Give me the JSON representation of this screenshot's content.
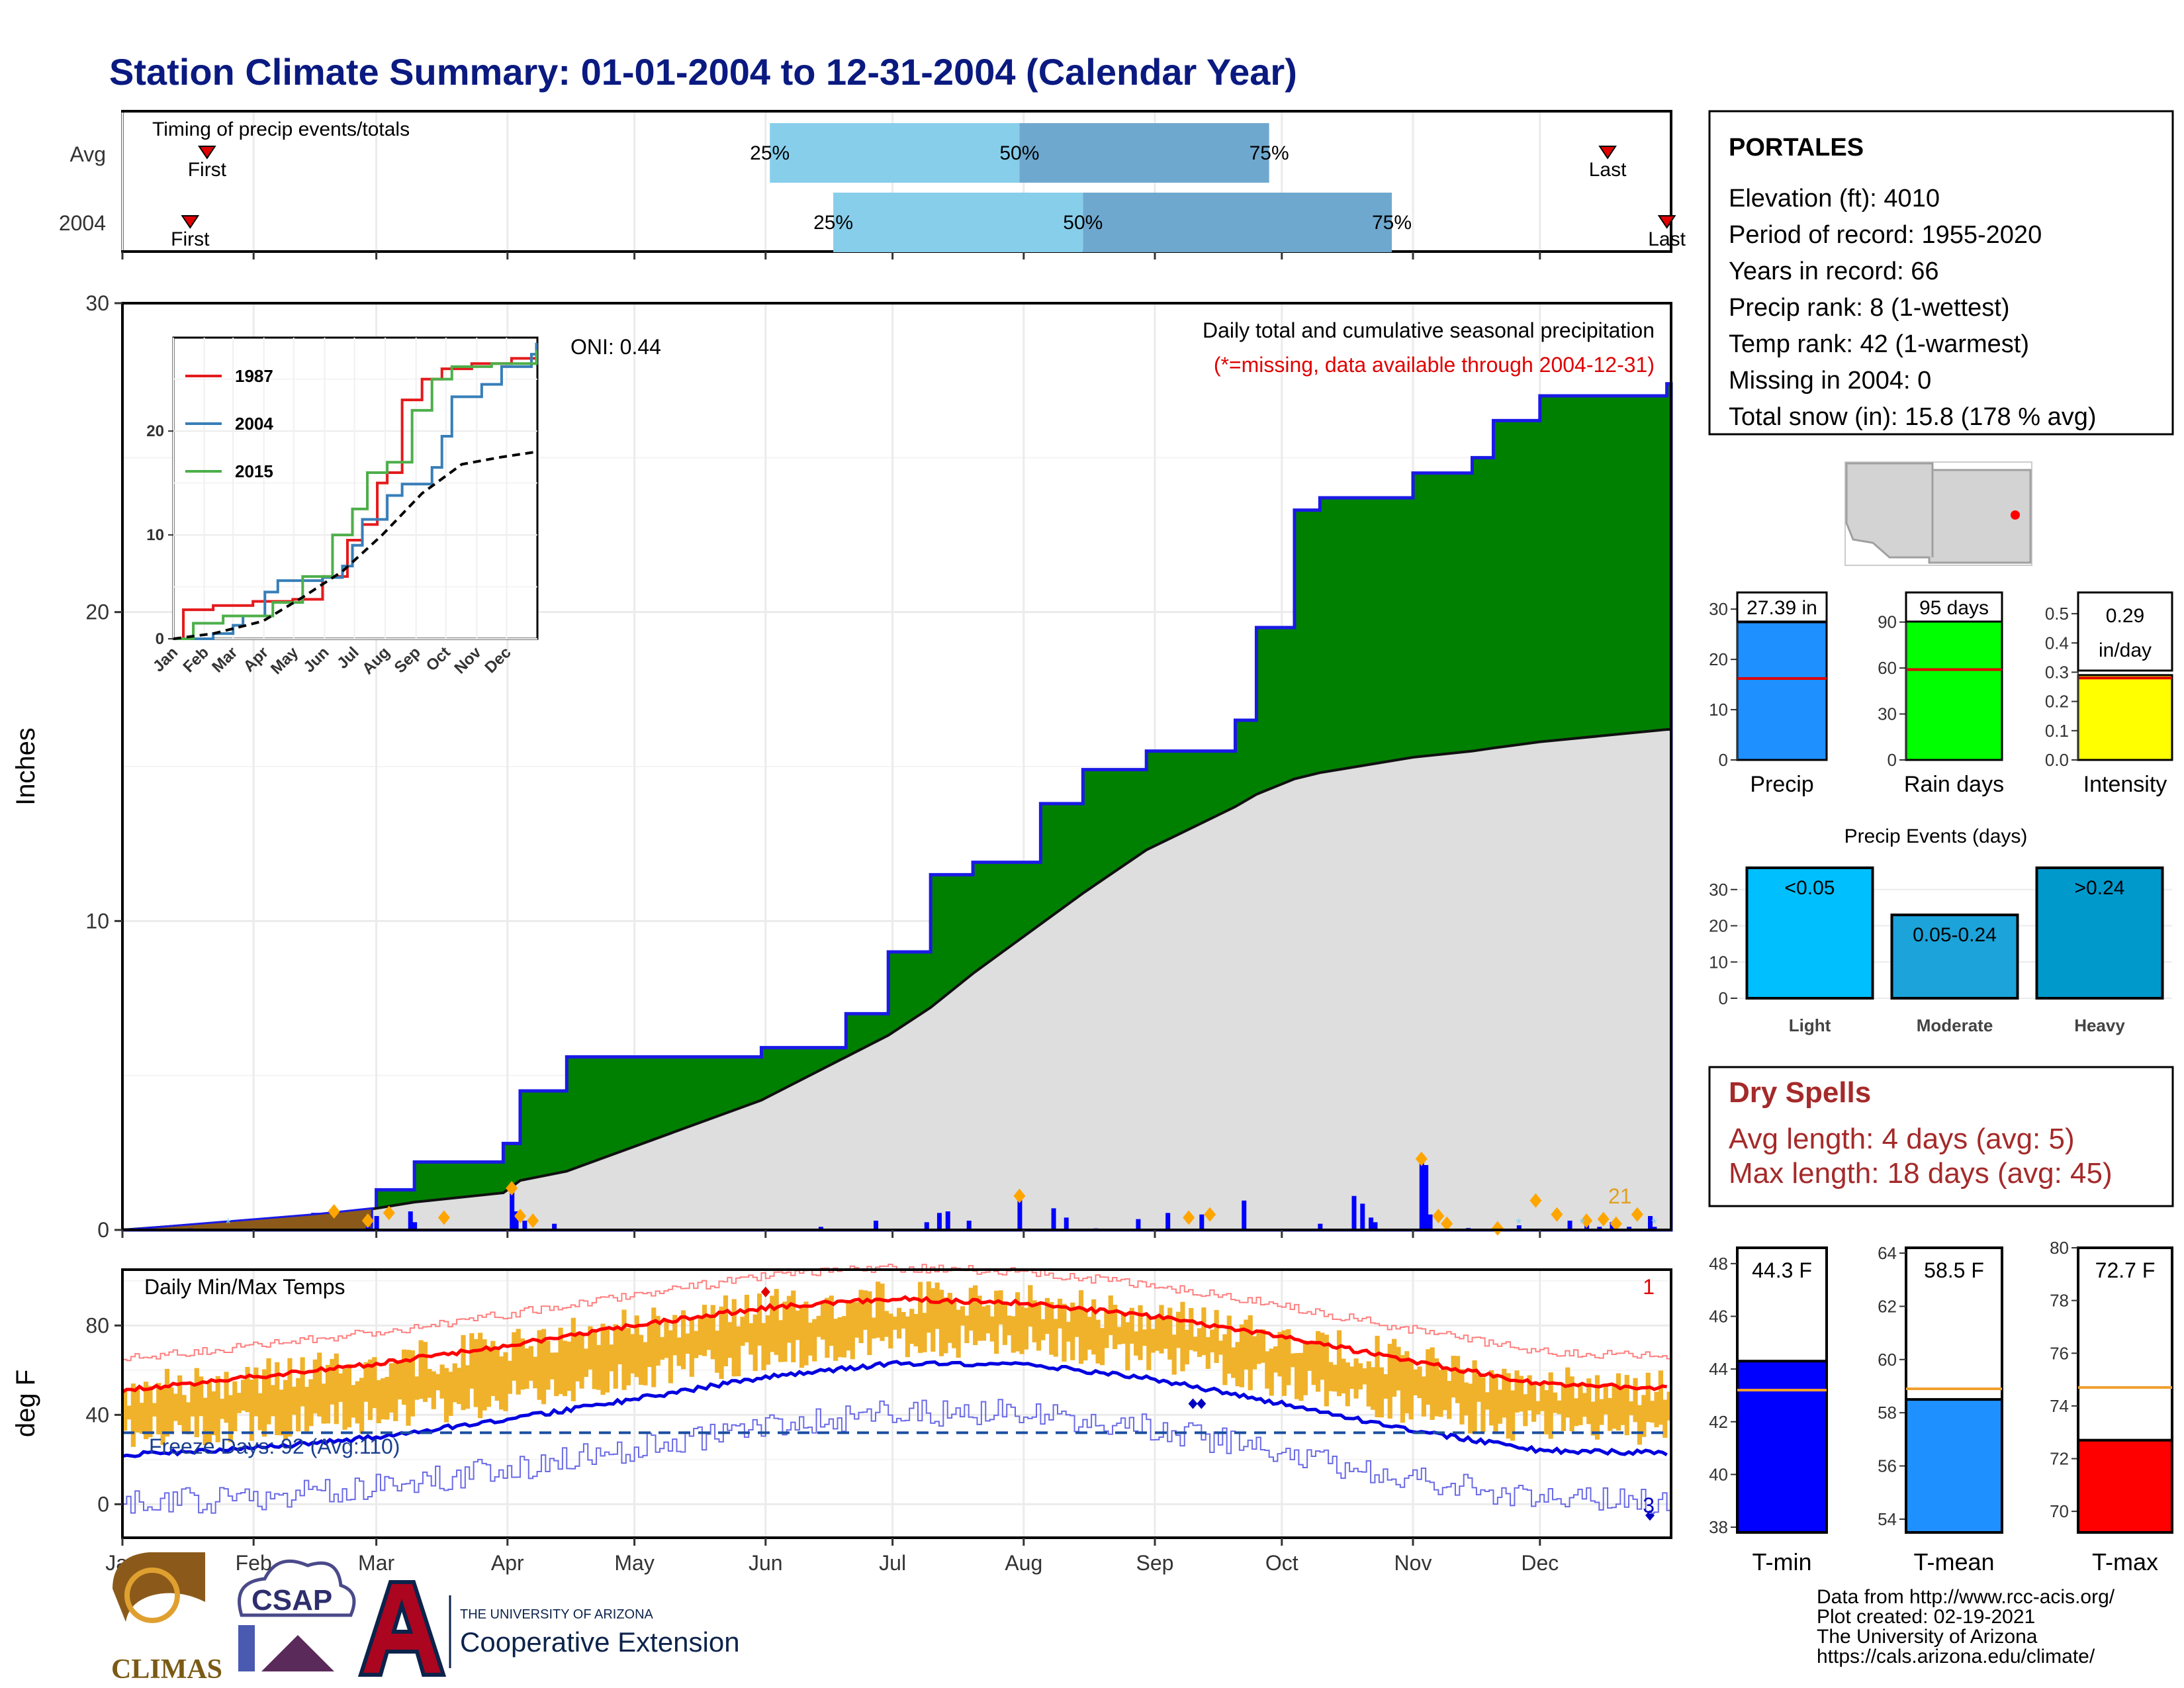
{
  "title": "Station Climate Summary: 01-01-2004 to 12-31-2004 (Calendar Year)",
  "timing": {
    "label": "Timing of precip events/totals",
    "rows": [
      {
        "name": "Avg",
        "first_doy": 20,
        "last_doy": 351,
        "q25_doy": 153,
        "q50_doy": 212,
        "q75_doy": 271
      },
      {
        "name": "2004",
        "first_doy": 16,
        "last_doy": 365,
        "q25_doy": 168,
        "q50_doy": 227,
        "q75_doy": 300
      }
    ],
    "first_label": "First",
    "last_label": "Last",
    "q_labels": [
      "25%",
      "50%",
      "75%"
    ]
  },
  "precip_panel": {
    "ylabel": "Inches",
    "yticks": [
      "0",
      "10",
      "20",
      "30"
    ],
    "ylim": [
      0,
      30
    ],
    "oni": "ONI: 0.44",
    "caption": "Daily total and cumulative seasonal precipitation",
    "missing_note": "(*=missing, data available through 2004-12-31)",
    "count_label": "21"
  },
  "inset": {
    "yticks": [
      "0",
      "10",
      "20"
    ],
    "months": [
      "Jan",
      "Feb",
      "Mar",
      "Apr",
      "May",
      "Jun",
      "Jul",
      "Aug",
      "Sep",
      "Oct",
      "Nov",
      "Dec"
    ],
    "legend": [
      {
        "name": "1987",
        "color": "#e41a1c"
      },
      {
        "name": "2004",
        "color": "#377eb8"
      },
      {
        "name": "2015",
        "color": "#4daf4a"
      }
    ]
  },
  "temp_panel": {
    "ylabel": "deg F",
    "yticks": [
      "0",
      "40",
      "80"
    ],
    "label": "Daily Min/Max Temps",
    "freeze": "Freeze Days: 92 (Avg:110)",
    "record_high_count": "1",
    "record_low_count": "3"
  },
  "months": [
    "Jan",
    "Feb",
    "Mar",
    "Apr",
    "May",
    "Jun",
    "Jul",
    "Aug",
    "Sep",
    "Oct",
    "Nov",
    "Dec"
  ],
  "station": {
    "name": "PORTALES",
    "lines": [
      "Elevation (ft): 4010",
      "Period of record: 1955-2020",
      "Years in record: 66",
      "Precip rank: 8 (1-wettest)",
      "Temp rank: 42 (1-warmest)",
      "Missing in 2004: 0",
      "Total snow (in): 15.8 (178 % avg)"
    ]
  },
  "summary_bars": [
    {
      "name": "Precip",
      "value_label": "27.39 in",
      "value": 27.39,
      "avg": 16.2,
      "max": 32,
      "yticks": [
        "0",
        "10",
        "20",
        "30"
      ],
      "tickvals": [
        0,
        10,
        20,
        30
      ],
      "color": "#1e90ff"
    },
    {
      "name": "Rain days",
      "value_label": "95 days",
      "value": 95,
      "avg": 59,
      "max": 105,
      "yticks": [
        "0",
        "30",
        "60",
        "90"
      ],
      "tickvals": [
        0,
        30,
        60,
        90
      ],
      "color": "#00ff00"
    },
    {
      "name": "Intensity",
      "value_label_1": "0.29",
      "value_label_2": "in/day",
      "value": 0.29,
      "avg": 0.28,
      "max": 0.55,
      "yticks": [
        "0.0",
        "0.1",
        "0.2",
        "0.3",
        "0.4",
        "0.5"
      ],
      "tickvals": [
        0,
        0.1,
        0.2,
        0.3,
        0.4,
        0.5
      ],
      "color": "#ffff00"
    }
  ],
  "precip_events": {
    "title": "Precip Events (days)",
    "yticks": [
      "0",
      "10",
      "20",
      "30"
    ],
    "bars": [
      {
        "category": "Light",
        "label": "<0.05",
        "value": 36,
        "color": "#00bfff"
      },
      {
        "category": "Moderate",
        "label": "0.05-0.24",
        "value": 23,
        "color": "#1ca3d9"
      },
      {
        "category": "Heavy",
        "label": ">0.24",
        "value": 36,
        "color": "#0099cc"
      }
    ]
  },
  "dry_spells": {
    "title": "Dry Spells",
    "avg": "Avg length: 4 days (avg: 5)",
    "max": "Max length: 18 days (avg: 45)"
  },
  "temp_bars": [
    {
      "name": "T-min",
      "value_label": "44.3 F",
      "value": 44.3,
      "avg": 43.2,
      "min": 37.8,
      "max": 48.6,
      "yticks": [
        "38",
        "40",
        "42",
        "44",
        "46",
        "48"
      ],
      "tickvals": [
        38,
        40,
        42,
        44,
        46,
        48
      ],
      "color": "#0000ff"
    },
    {
      "name": "T-mean",
      "value_label": "58.5 F",
      "value": 58.5,
      "avg": 58.9,
      "min": 53.5,
      "max": 64.2,
      "yticks": [
        "54",
        "56",
        "58",
        "60",
        "62",
        "64"
      ],
      "tickvals": [
        54,
        56,
        58,
        60,
        62,
        64
      ],
      "color": "#1e90ff"
    },
    {
      "name": "T-max",
      "value_label": "72.7 F",
      "value": 72.7,
      "avg": 74.7,
      "min": 69.2,
      "max": 80.0,
      "yticks": [
        "70",
        "72",
        "74",
        "76",
        "78",
        "80"
      ],
      "tickvals": [
        70,
        72,
        74,
        76,
        78,
        80
      ],
      "color": "#ff0000"
    }
  ],
  "footer": {
    "lines": [
      "Data from http://www.rcc-acis.org/",
      "Plot created: 02-19-2021",
      "The University of Arizona",
      "https://cals.arizona.edu/climate/"
    ],
    "climas": "CLIMAS",
    "csap": "CSAP",
    "ua_small": "THE UNIVERSITY OF ARIZONA",
    "ua_big": "Cooperative Extension"
  },
  "chart_data": [
    {
      "type": "area",
      "title": "Daily total and cumulative seasonal precipitation",
      "ylabel": "Inches",
      "ylim": [
        0,
        30
      ],
      "x": [
        "01-01",
        "02-15",
        "03-01",
        "03-10",
        "03-31",
        "04-04",
        "04-15",
        "05-31",
        "06-20",
        "06-30",
        "07-10",
        "07-20",
        "08-05",
        "08-15",
        "08-30",
        "09-20",
        "09-25",
        "10-04",
        "10-10",
        "11-01",
        "11-15",
        "11-20",
        "12-01",
        "12-31"
      ],
      "series": [
        {
          "name": "2004",
          "values": [
            0.0,
            0.5,
            1.3,
            2.2,
            2.8,
            4.5,
            5.6,
            5.9,
            7.0,
            9.0,
            11.5,
            11.9,
            13.8,
            14.9,
            15.5,
            16.5,
            19.5,
            23.3,
            23.7,
            24.5,
            25.0,
            26.2,
            27.0,
            27.39
          ]
        },
        {
          "name": "",
          "values": [
            0.0,
            0.45,
            0.7,
            0.9,
            1.2,
            1.6,
            1.9,
            4.2,
            5.6,
            6.3,
            7.2,
            8.3,
            9.9,
            10.9,
            12.3,
            13.7,
            14.1,
            14.6,
            14.8,
            15.3,
            15.5,
            15.6,
            15.8,
            16.2
          ]
        }
      ]
    },
    {
      "type": "line",
      "title": "Daily Min/Max Temps",
      "ylabel": "deg F",
      "ylim": [
        -15,
        105
      ],
      "x": [
        "01-01",
        "02-01",
        "03-01",
        "04-01",
        "05-01",
        "06-01",
        "07-01",
        "08-01",
        "09-01",
        "10-01",
        "11-01",
        "12-01",
        "12-31"
      ],
      "series": [
        {
          "name": "",
          "values": [
            51,
            57,
            63,
            71,
            80,
            88,
            92,
            90,
            84,
            75,
            64,
            54,
            52
          ]
        },
        {
          "name": "",
          "values": [
            22,
            25,
            30,
            38,
            47,
            57,
            63,
            63,
            56,
            45,
            33,
            24,
            23
          ]
        }
      ]
    }
  ]
}
